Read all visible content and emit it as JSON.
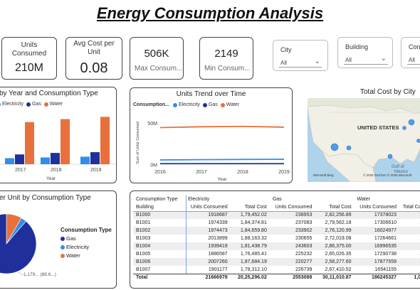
{
  "title": "Energy Consumption Analysis",
  "kpis": {
    "units_consumed": {
      "label": "Units Consumed",
      "value": "210M"
    },
    "avg_cost": {
      "label": "Avg Cost per Unit",
      "value": "0.08"
    },
    "max_consumption": {
      "value": "506K",
      "label": "Max Consum..."
    },
    "min_consumption": {
      "value": "2149",
      "label": "Min Consum..."
    }
  },
  "slicers": {
    "city": {
      "label": "City",
      "value": "All"
    },
    "building": {
      "label": "Building",
      "value": "All"
    },
    "consumption": {
      "label": "Cons",
      "value": "All"
    }
  },
  "colors": {
    "gas": "#1f2f9c",
    "electricity": "#2f8ef0",
    "water": "#e8703a"
  },
  "bar_panel": {
    "title": "by Year and Consumption Type",
    "legend": [
      "Electricity",
      "Gas",
      "Water"
    ],
    "x_axis_title": "Year",
    "chart_data": {
      "type": "bar",
      "categories": [
        "2017",
        "2018",
        "2019"
      ],
      "series": [
        {
          "name": "Electricity",
          "values": [
            8,
            9,
            10
          ]
        },
        {
          "name": "Gas",
          "values": [
            13,
            15,
            16
          ]
        },
        {
          "name": "Water",
          "values": [
            56,
            60,
            63
          ]
        }
      ]
    }
  },
  "trend_panel": {
    "title": "Units Trend over Time",
    "legend_title": "Consumption...",
    "legend": [
      "Electricity",
      "Gas",
      "Water"
    ],
    "y_axis_title": "Sum of Units Consumed",
    "x_axis_title": "Year",
    "y_ticks": [
      "50M",
      "0M"
    ],
    "x_ticks": [
      "2016",
      "2017",
      "2018",
      "2019"
    ],
    "chart_data": {
      "type": "line",
      "x": [
        2016,
        2017,
        2018,
        2019
      ],
      "ylim": [
        0,
        60
      ],
      "series": [
        {
          "name": "Water",
          "values": [
            45,
            46,
            46.5,
            45.5
          ]
        },
        {
          "name": "Electricity",
          "values": [
            6,
            6.3,
            6.6,
            6.8
          ]
        },
        {
          "name": "Gas",
          "values": [
            1.5,
            1.5,
            1.5,
            1.5
          ]
        }
      ]
    }
  },
  "map_panel": {
    "title": "Total Cost by City",
    "country_label": "UNITED STATES",
    "gulf_label": "Gulf of\nMexico",
    "mexico_label": "Mexico",
    "credit_left": "Microsoft Bing",
    "credit_right": "© 2025 TomTom  © 2025 Microsoft"
  },
  "pie_panel": {
    "title": "er Unit by Consumption Type",
    "legend_title": "Consumption Type",
    "legend": [
      "Gas",
      "Electricity",
      "Water"
    ],
    "data_label": "1,179... (88.6...)",
    "chart_data": {
      "type": "pie",
      "categories": [
        "Gas",
        "Electricity",
        "Water"
      ],
      "values": [
        88.6,
        3,
        8.4
      ]
    }
  },
  "table": {
    "header1": [
      "Consumption Type",
      "Electricity",
      "",
      "Gas",
      "",
      "Water",
      ""
    ],
    "header2": [
      "Building",
      "Units Consumed",
      "Total Cost",
      "Units Consumed",
      "Total Cost",
      "Units Consumed",
      "Total Cost"
    ],
    "rows": [
      [
        "B1000",
        "1918687",
        "1,79,452.02",
        "238953",
        "2,82,256.89",
        "17378023",
        "10"
      ],
      [
        "B1001",
        "1974339",
        "1,84,374.81",
        "237083",
        "2,79,562.18",
        "17306610",
        "10"
      ],
      [
        "B1002",
        "1974473",
        "1,84,659.80",
        "233902",
        "2,76,120.99",
        "16024977",
        "9"
      ],
      [
        "B1003",
        "2013899",
        "1,88,163.32",
        "230655",
        "2,72,019.08",
        "17264661",
        "10"
      ],
      [
        "B1004",
        "1939419",
        "1,81,438.79",
        "243603",
        "2,86,375.00",
        "16996535",
        "9"
      ],
      [
        "B1005",
        "1886587",
        "1,76,485.41",
        "225232",
        "2,65,026.35",
        "17290738",
        "10"
      ],
      [
        "B1006",
        "2007260",
        "1,87,684.19",
        "220277",
        "2,58,277.60",
        "17877559",
        "10"
      ],
      [
        "B1007",
        "1901177",
        "1,78,312.10",
        "226739",
        "2,67,410.52",
        "16541155",
        "9"
      ]
    ],
    "total": [
      "Total",
      "21666978",
      "20,25,296.02",
      "2553088",
      "30,11,010.87",
      "186245327",
      "1,08,"
    ]
  }
}
